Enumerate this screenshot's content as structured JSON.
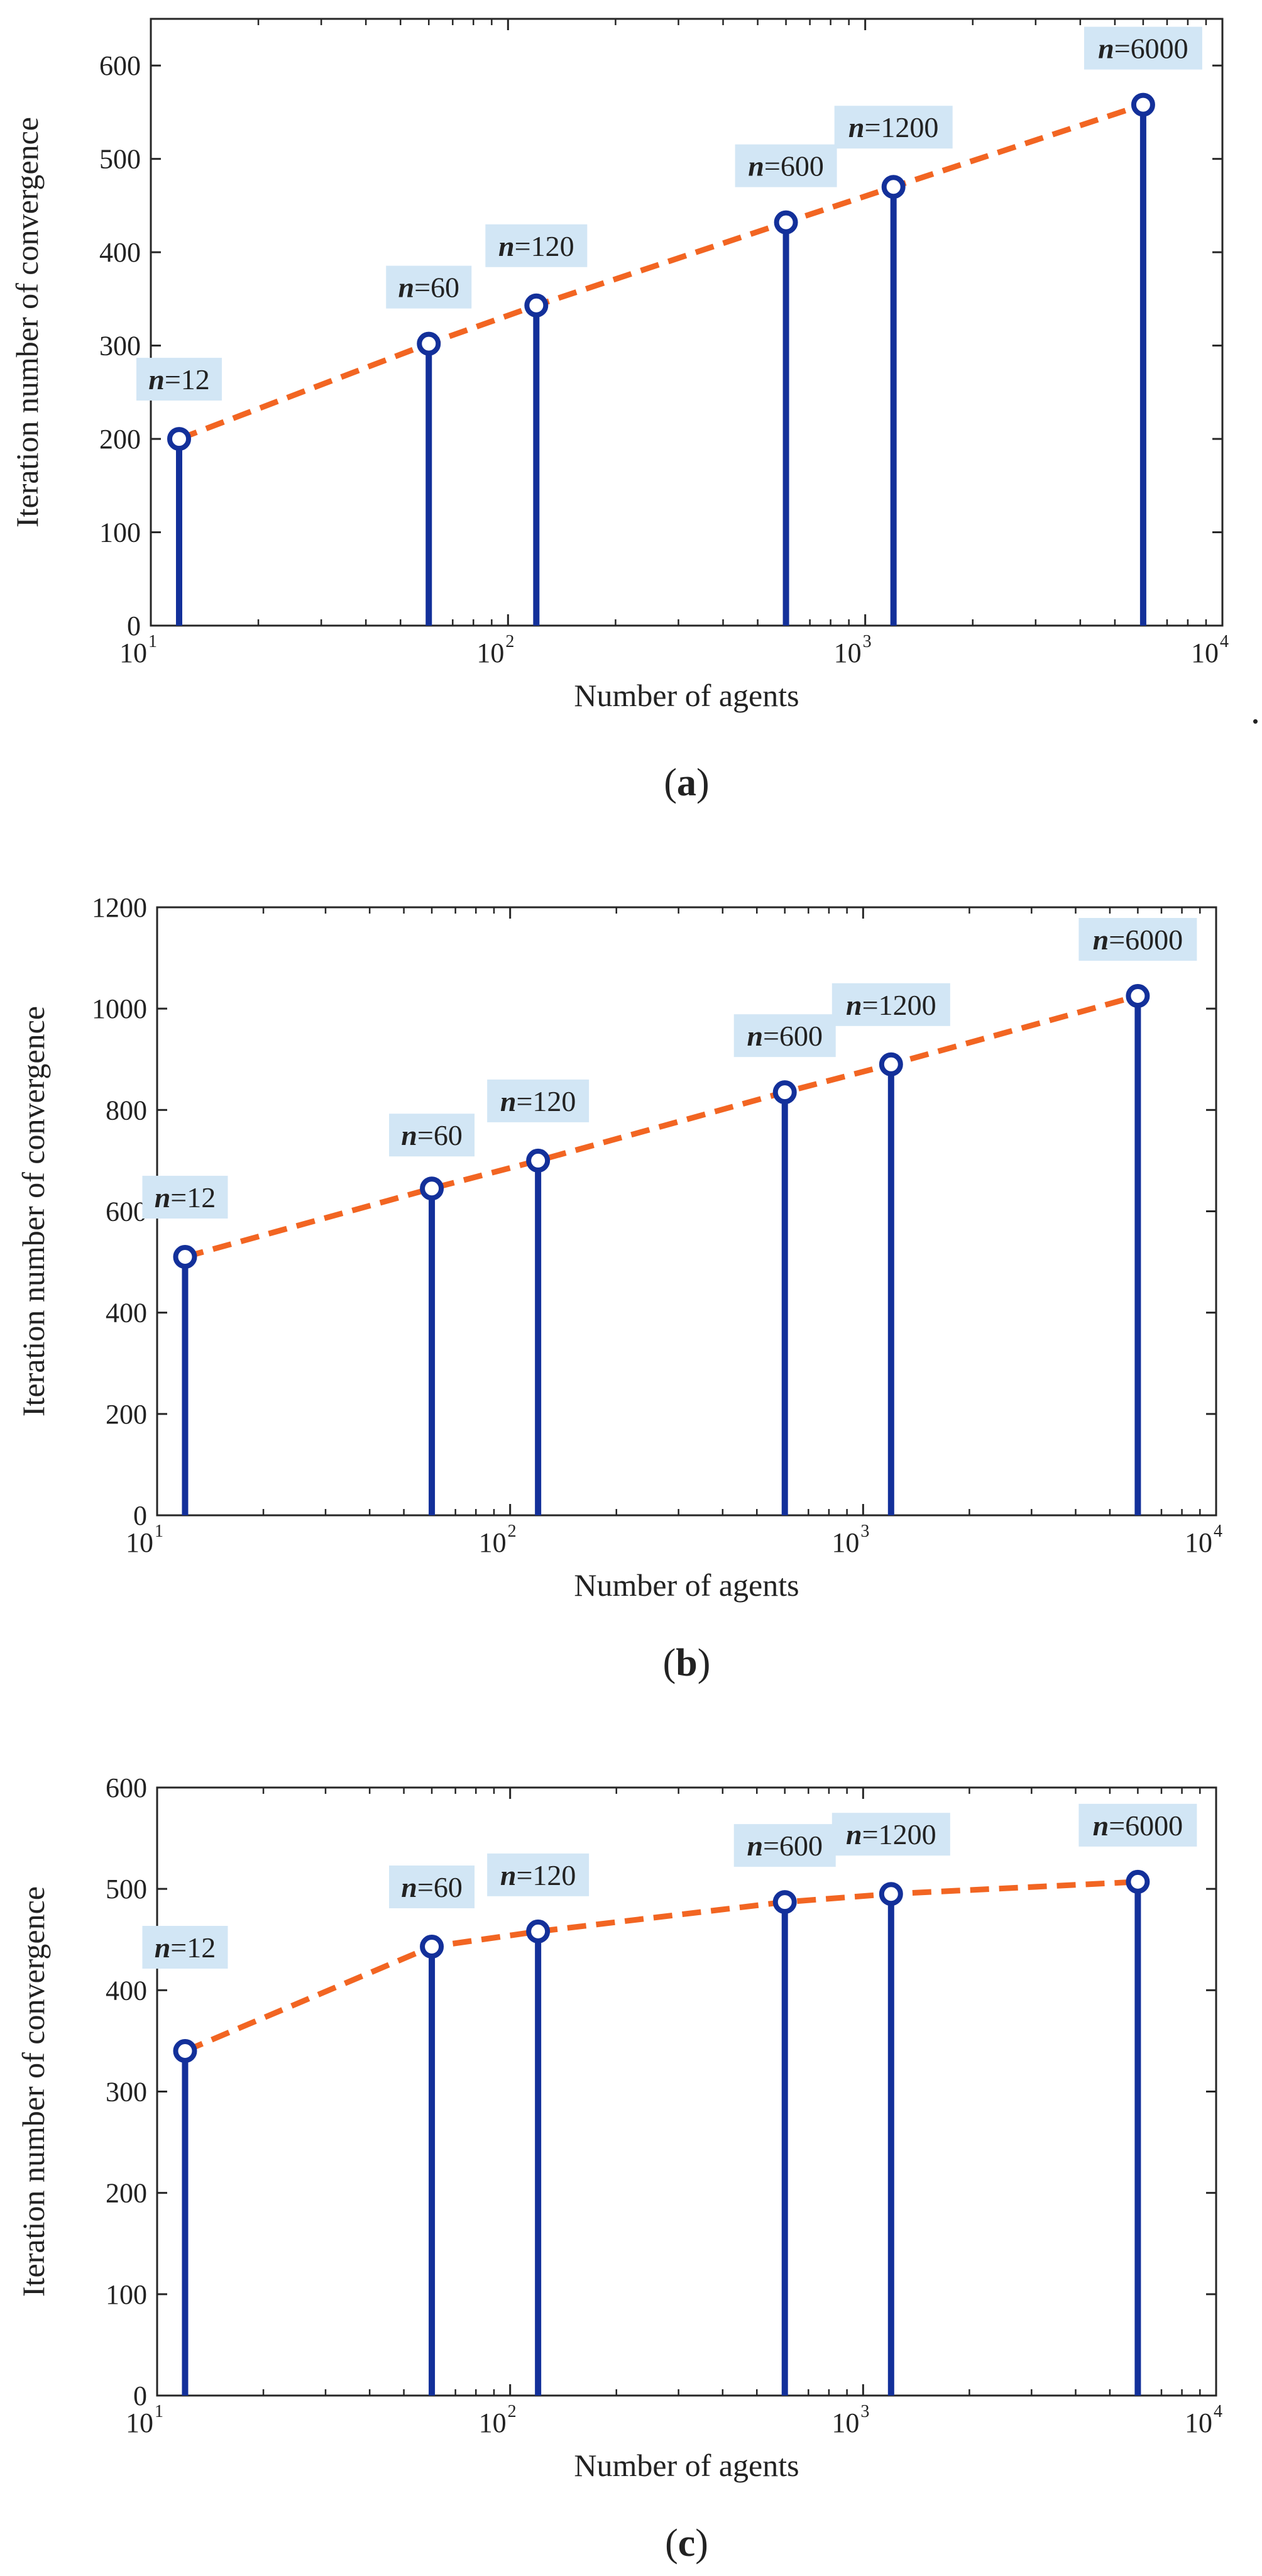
{
  "figure": {
    "trailing_mark": "."
  },
  "chart_data": [
    {
      "type": "stem",
      "panel": "a",
      "caption_letter": "a",
      "xscale": "log",
      "xlim": [
        10,
        10000
      ],
      "ylim": [
        0,
        650
      ],
      "ytick_step": 100,
      "xlabel": "Number of agents",
      "ylabel": "Iteration number of convergence",
      "x": [
        12,
        60,
        120,
        600,
        1200,
        6000
      ],
      "values": [
        200,
        302,
        343,
        432,
        470,
        558
      ],
      "annotation_prefix": "n",
      "annotations": [
        "=12",
        "=60",
        "=120",
        "=600",
        "=1200",
        "=6000"
      ],
      "annotation_offsets": [
        95,
        90,
        95,
        90,
        95,
        90
      ],
      "stem_color": "#13309a",
      "trend_color": "#f26522",
      "label_bg": "#d2e6f5"
    },
    {
      "type": "stem",
      "panel": "b",
      "caption_letter": "b",
      "xscale": "log",
      "xlim": [
        10,
        10000
      ],
      "ylim": [
        0,
        1200
      ],
      "ytick_step": 200,
      "xlabel": "Number of agents",
      "ylabel": "Iteration number of convergence",
      "x": [
        12,
        60,
        120,
        600,
        1200,
        6000
      ],
      "values": [
        510,
        645,
        700,
        835,
        890,
        1025
      ],
      "annotation_prefix": "n",
      "annotations": [
        "=12",
        "=60",
        "=120",
        "=600",
        "=1200",
        "=6000"
      ],
      "annotation_offsets": [
        95,
        85,
        95,
        90,
        95,
        90
      ],
      "stem_color": "#13309a",
      "trend_color": "#f26522",
      "label_bg": "#d2e6f5"
    },
    {
      "type": "stem",
      "panel": "c",
      "caption_letter": "c",
      "xscale": "log",
      "xlim": [
        10,
        10000
      ],
      "ylim": [
        0,
        600
      ],
      "ytick_step": 100,
      "xlabel": "Number of agents",
      "ylabel": "Iteration number of convergence",
      "x": [
        12,
        60,
        120,
        600,
        1200,
        6000
      ],
      "values": [
        340,
        443,
        458,
        487,
        495,
        507
      ],
      "annotation_prefix": "n",
      "annotations": [
        "=12",
        "=60",
        "=120",
        "=600",
        "=1200",
        "=6000"
      ],
      "annotation_offsets": [
        165,
        95,
        90,
        90,
        95,
        90
      ],
      "stem_color": "#13309a",
      "trend_color": "#f26522",
      "label_bg": "#d2e6f5"
    }
  ]
}
